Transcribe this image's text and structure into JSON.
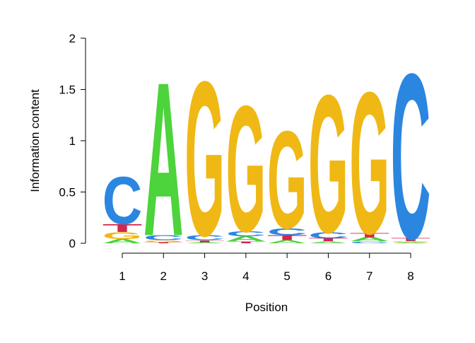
{
  "chart_data": {
    "type": "sequence-logo",
    "xlabel": "Position",
    "ylabel": "Information content",
    "x": [
      1,
      2,
      3,
      4,
      5,
      6,
      7,
      8
    ],
    "xlim": [
      1,
      8
    ],
    "xticks": [
      1,
      2,
      3,
      4,
      5,
      6,
      7,
      8
    ],
    "ylim": [
      0,
      2
    ],
    "yticks": [
      0,
      0.5,
      1,
      1.5,
      2
    ],
    "series": [
      {
        "name": "A",
        "color": "#4dd33c",
        "values": [
          0.04,
          1.56,
          0.01,
          0.05,
          0.03,
          0.02,
          0.04,
          0.01
        ]
      },
      {
        "name": "C",
        "color": "#2b86e0",
        "values": [
          0.48,
          0.05,
          0.05,
          0.05,
          0.07,
          0.06,
          0.02,
          1.68
        ]
      },
      {
        "name": "G",
        "color": "#f0b815",
        "values": [
          0.07,
          0.02,
          1.57,
          1.28,
          0.99,
          1.4,
          1.44,
          0.01
        ]
      },
      {
        "name": "T",
        "color": "#d5264b",
        "values": [
          0.08,
          0.01,
          0.02,
          0.02,
          0.05,
          0.03,
          0.04,
          0.03
        ]
      }
    ]
  }
}
